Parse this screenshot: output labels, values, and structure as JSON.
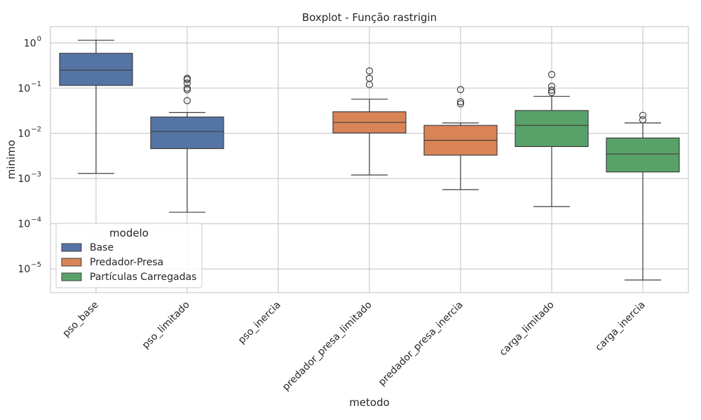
{
  "chart_data": {
    "type": "boxplot",
    "title": "Boxplot - Função rastrigin",
    "xlabel": "metodo",
    "ylabel": "minimo",
    "yscale": "log",
    "ylim": [
      3e-06,
      2.3
    ],
    "grid": "on",
    "legend_placement": "lower-left",
    "legend_title": "modelo",
    "categories": [
      "pso_base",
      "pso_limitado",
      "pso_inercia",
      "predador_presa_limitado",
      "predador_presa_inercia",
      "carga_limitado",
      "carga_inercia"
    ],
    "yticks": [
      {
        "value": 1,
        "base": "10",
        "exp": "0"
      },
      {
        "value": 0.1,
        "base": "10",
        "exp": "−1"
      },
      {
        "value": 0.01,
        "base": "10",
        "exp": "−2"
      },
      {
        "value": 0.001,
        "base": "10",
        "exp": "−3"
      },
      {
        "value": 0.0001,
        "base": "10",
        "exp": "−4"
      },
      {
        "value": 1e-05,
        "base": "10",
        "exp": "−5"
      }
    ],
    "series": [
      {
        "name": "Base",
        "color": "#5574a6"
      },
      {
        "name": "Predador-Presa",
        "color": "#d98456"
      },
      {
        "name": "Partículas Carregadas",
        "color": "#58a269"
      }
    ],
    "boxes": [
      {
        "category": "pso_base",
        "series": 0,
        "whisker_low": 0.0013,
        "q1": 0.115,
        "median": 0.25,
        "q3": 0.59,
        "whisker_high": 1.15,
        "outliers": []
      },
      {
        "category": "pso_limitado",
        "series": 0,
        "whisker_low": 0.00018,
        "q1": 0.0046,
        "median": 0.011,
        "q3": 0.023,
        "whisker_high": 0.029,
        "outliers": [
          0.053,
          0.092,
          0.1,
          0.13,
          0.155,
          0.165
        ]
      },
      {
        "category": "predador_presa_limitado",
        "series": 1,
        "whisker_low": 0.0012,
        "q1": 0.0102,
        "median": 0.0175,
        "q3": 0.03,
        "whisker_high": 0.057,
        "outliers": [
          0.12,
          0.165,
          0.24
        ]
      },
      {
        "category": "predador_presa_inercia",
        "series": 1,
        "whisker_low": 0.00057,
        "q1": 0.0033,
        "median": 0.007,
        "q3": 0.015,
        "whisker_high": 0.017,
        "outliers": [
          0.045,
          0.05,
          0.093
        ]
      },
      {
        "category": "carga_limitado",
        "series": 2,
        "whisker_low": 0.00024,
        "q1": 0.0051,
        "median": 0.015,
        "q3": 0.032,
        "whisker_high": 0.066,
        "outliers": [
          0.08,
          0.09,
          0.11,
          0.2
        ]
      },
      {
        "category": "carga_inercia",
        "series": 2,
        "whisker_low": 5.7e-06,
        "q1": 0.0014,
        "median": 0.0035,
        "q3": 0.0079,
        "whisker_high": 0.017,
        "outliers": [
          0.02,
          0.025
        ]
      }
    ]
  }
}
